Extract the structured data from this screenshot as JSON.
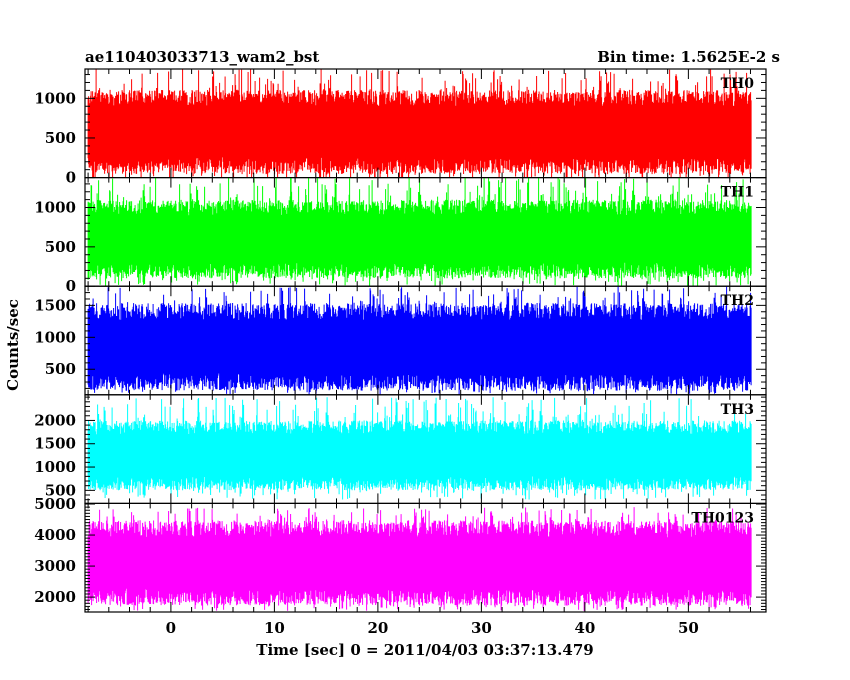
{
  "title_left": "ae110403033713_wam2_bst",
  "title_right": "Bin time: 1.5625E-2 s",
  "chart_data": {
    "type": "line",
    "x_range": [
      -8.3,
      57.5
    ],
    "x_data_range": [
      -8.0,
      56.1
    ],
    "x_ticks": [
      0,
      10,
      20,
      30,
      40,
      50
    ],
    "xlabel": "Time [sec] 0 = 2011/04/03 03:37:13.479",
    "ylabel": "Counts/sec",
    "bin_time_s": 0.015625,
    "panels": [
      {
        "name": "TH0",
        "color": "#ff0000",
        "ylim": [
          0,
          1370
        ],
        "yticks": [
          0,
          500,
          1000
        ],
        "typical_range": [
          150,
          1000
        ],
        "envelope": [
          -50,
          1370
        ]
      },
      {
        "name": "TH1",
        "color": "#00ff00",
        "ylim": [
          0,
          1380
        ],
        "yticks": [
          0,
          500,
          1000
        ],
        "typical_range": [
          200,
          1000
        ],
        "envelope": [
          0,
          1400
        ]
      },
      {
        "name": "TH2",
        "color": "#0000ff",
        "ylim": [
          100,
          1800
        ],
        "yticks": [
          500,
          1000,
          1500
        ],
        "typical_range": [
          300,
          1400
        ],
        "envelope": [
          100,
          1800
        ]
      },
      {
        "name": "TH3",
        "color": "#00ffff",
        "ylim": [
          220,
          2550
        ],
        "yticks": [
          500,
          1000,
          1500,
          2000
        ],
        "typical_range": [
          650,
          1850
        ],
        "envelope": [
          300,
          2500
        ]
      },
      {
        "name": "TH0123",
        "color": "#ff00ff",
        "ylim": [
          1520,
          5020
        ],
        "yticks": [
          2000,
          3000,
          4000,
          5000
        ],
        "typical_range": [
          2000,
          4200
        ],
        "envelope": [
          1550,
          4900
        ]
      }
    ]
  }
}
